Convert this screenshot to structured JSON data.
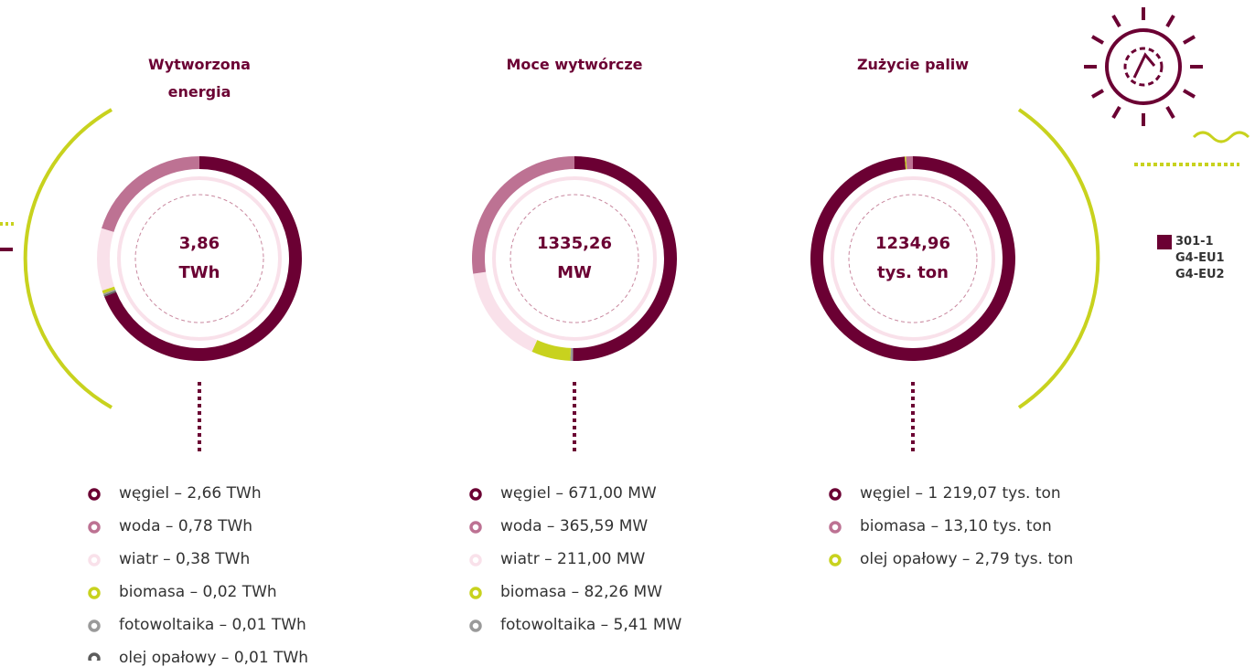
{
  "chart_data": [
    {
      "type": "pie",
      "title": "Wytworzona energia",
      "center_label": "3,86 TWh",
      "values": [
        2.66,
        0.78,
        0.38,
        0.02,
        0.01,
        0.01
      ],
      "value_labels": [
        "węgiel – 2,66 TWh",
        "woda – 0,78 TWh",
        "wiatr – 0,38 TWh",
        "biomasa – 0,02 TWh",
        "fotowoltaika – 0,01 TWh",
        "olej opałowy – 0,01 TWh"
      ],
      "colors": [
        "#6b0033",
        "#bd7293",
        "#f9e1ea",
        "#c8d21e",
        "#9a9a9a",
        "#5c5c5c"
      ]
    },
    {
      "type": "pie",
      "title": "Moce wytwórcze",
      "center_label": "1335,26 MW",
      "values": [
        671.0,
        365.59,
        211.0,
        82.26,
        5.41
      ],
      "value_labels": [
        "węgiel – 671,00 MW",
        "woda – 365,59 MW",
        "wiatr – 211,00 MW",
        "biomasa – 82,26 MW",
        "fotowoltaika – 5,41 MW"
      ],
      "colors": [
        "#6b0033",
        "#bd7293",
        "#f9e1ea",
        "#c8d21e",
        "#9a9a9a"
      ]
    },
    {
      "type": "pie",
      "title": "Zużycie paliw",
      "center_label": "1234,96 tys. ton",
      "values": [
        1219.07,
        13.1,
        2.79
      ],
      "value_labels": [
        "węgiel – 1 219,07 tys. ton",
        "biomasa – 13,10 tys. ton",
        "olej opałowy – 2,79 tys. ton"
      ],
      "colors": [
        "#6b0033",
        "#bd7293",
        "#c8d21e"
      ]
    }
  ],
  "codes": [
    "301-1",
    "G4-EU1",
    "G4-EU2"
  ]
}
